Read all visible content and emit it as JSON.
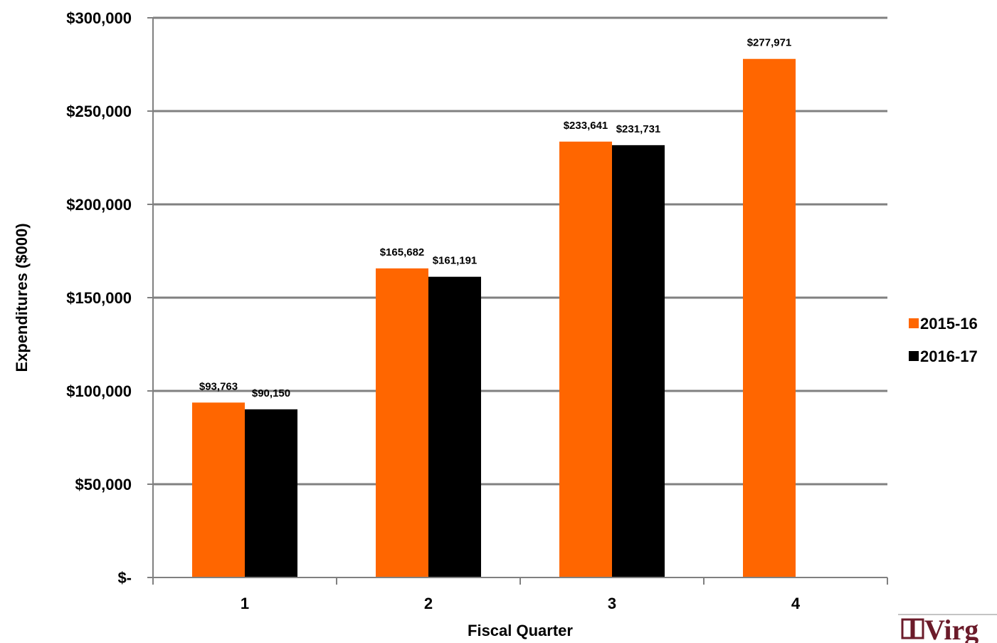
{
  "chart_data": {
    "type": "bar",
    "title": "",
    "xlabel": "Fiscal Quarter",
    "ylabel": "Expenditures ($000)",
    "categories": [
      "1",
      "2",
      "3",
      "4"
    ],
    "series": [
      {
        "name": "2015-16",
        "color": "#ff6600",
        "values": [
          93763,
          165682,
          233641,
          277971
        ],
        "labels": [
          "$93,763",
          "$165,682",
          "$233,641",
          "$277,971"
        ]
      },
      {
        "name": "2016-17",
        "color": "#000000",
        "values": [
          90150,
          161191,
          231731,
          null
        ],
        "labels": [
          "$90,150",
          "$161,191",
          "$231,731",
          null
        ]
      }
    ],
    "ylim": [
      0,
      300000
    ],
    "yticks": [
      0,
      50000,
      100000,
      150000,
      200000,
      250000,
      300000
    ],
    "ytick_labels": [
      "$-",
      "$50,000",
      "$100,000",
      "$150,000",
      "$200,000",
      "$250,000",
      "$300,000"
    ],
    "grid": true,
    "legend_position": "right"
  },
  "logo": {
    "text": "Virg",
    "icon": "book-icon",
    "color": "#6b1b2a"
  }
}
